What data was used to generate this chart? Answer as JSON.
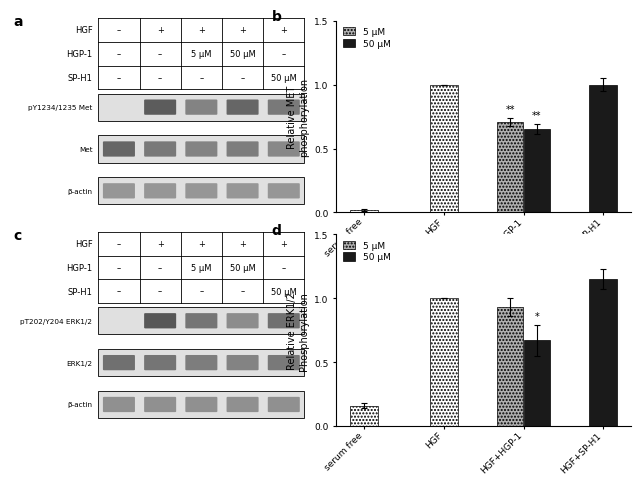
{
  "panel_b": {
    "categories": [
      "serum free",
      "HGF",
      "HGF+HGP-1",
      "HGF+SP-H1"
    ],
    "bar1_values": [
      0.02,
      1.0,
      0.71,
      null
    ],
    "bar2_values": [
      null,
      null,
      0.65,
      1.0
    ],
    "bar1_errors": [
      0.01,
      0.0,
      0.03,
      null
    ],
    "bar2_errors": [
      null,
      null,
      0.04,
      0.05
    ],
    "ylabel": "Relative MET\nphosphorylation",
    "ylim": [
      0,
      1.5
    ],
    "yticks": [
      0.0,
      0.5,
      1.0,
      1.5
    ],
    "legend_labels": [
      "5 μM",
      "50 μM"
    ],
    "title_label": "b"
  },
  "panel_d": {
    "categories": [
      "serum free",
      "HGF",
      "HGF+HGP-1",
      "HGF+SP-H1"
    ],
    "bar1_values": [
      0.16,
      1.0,
      0.93,
      null
    ],
    "bar2_values": [
      null,
      null,
      0.67,
      1.15
    ],
    "bar1_errors": [
      0.02,
      0.0,
      0.07,
      null
    ],
    "bar2_errors": [
      null,
      null,
      0.12,
      0.08
    ],
    "ylabel": "Relative ERK1/2\nPhosphorylation",
    "ylim": [
      0,
      1.5
    ],
    "yticks": [
      0.0,
      0.5,
      1.0,
      1.5
    ],
    "legend_labels": [
      "5 μM",
      "50 μM"
    ],
    "title_label": "d"
  },
  "western_a": {
    "title_label": "a",
    "row_labels": [
      "HGF",
      "HGP-1",
      "SP-H1"
    ],
    "row1_vals": [
      "–",
      "+",
      "+",
      "+",
      "+"
    ],
    "row2_vals": [
      "–",
      "–",
      "5 μM",
      "50 μM",
      "–"
    ],
    "row3_vals": [
      "–",
      "–",
      "–",
      "–",
      "50 μM"
    ],
    "band_labels": [
      "pY1234/1235 Met",
      "Met",
      "β-actin"
    ],
    "band_intensities_0": [
      0.0,
      0.85,
      0.65,
      0.8,
      0.7
    ],
    "band_intensities_1": [
      0.8,
      0.7,
      0.65,
      0.68,
      0.62
    ],
    "band_intensities_2": [
      0.55,
      0.55,
      0.55,
      0.55,
      0.55
    ]
  },
  "western_c": {
    "title_label": "c",
    "row_labels": [
      "HGF",
      "HGP-1",
      "SP-H1"
    ],
    "row1_vals": [
      "–",
      "+",
      "+",
      "+",
      "+"
    ],
    "row2_vals": [
      "–",
      "–",
      "5 μM",
      "50 μM",
      "–"
    ],
    "row3_vals": [
      "–",
      "–",
      "–",
      "–",
      "50 μM"
    ],
    "band_labels": [
      "pT202/Y204 ERK1/2",
      "ERK1/2",
      "β-actin"
    ],
    "band_intensities_0": [
      0.0,
      0.88,
      0.72,
      0.6,
      0.75
    ],
    "band_intensities_1": [
      0.75,
      0.72,
      0.68,
      0.65,
      0.7
    ],
    "band_intensities_2": [
      0.58,
      0.58,
      0.58,
      0.58,
      0.58
    ]
  }
}
